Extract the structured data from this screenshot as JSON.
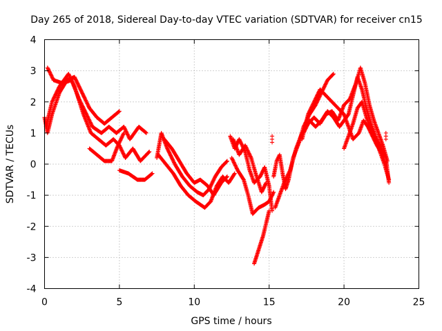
{
  "chart_data": {
    "type": "scatter",
    "title": "Day 265 of 2018, Sidereal Day-to-day VTEC variation (SDTVAR) for receiver cn15",
    "xlabel": "GPS time / hours",
    "ylabel": "SDTVAR / TECUs",
    "xlim": [
      0,
      25
    ],
    "ylim": [
      -4,
      4
    ],
    "xticks": [
      "0",
      "5",
      "10",
      "15",
      "20",
      "25"
    ],
    "yticks": [
      "-4",
      "-3",
      "-2",
      "-1",
      "0",
      "1",
      "2",
      "3",
      "4"
    ],
    "grid": true,
    "marker": "+",
    "color": "#ff0000",
    "series": [
      {
        "name": "track-1",
        "points": [
          [
            0.0,
            1.5
          ],
          [
            0.2,
            1.0
          ],
          [
            0.5,
            1.6
          ],
          [
            1.0,
            2.3
          ],
          [
            1.5,
            2.7
          ],
          [
            2.0,
            2.8
          ],
          [
            2.5,
            2.3
          ],
          [
            3.0,
            1.8
          ],
          [
            3.5,
            1.5
          ],
          [
            4.0,
            1.3
          ],
          [
            4.5,
            1.5
          ],
          [
            5.0,
            1.7
          ]
        ]
      },
      {
        "name": "track-2",
        "points": [
          [
            0.2,
            3.1
          ],
          [
            0.6,
            2.7
          ],
          [
            1.2,
            2.6
          ],
          [
            1.8,
            2.7
          ],
          [
            2.3,
            2.1
          ],
          [
            2.8,
            1.6
          ],
          [
            3.2,
            1.2
          ],
          [
            3.8,
            1.0
          ],
          [
            4.3,
            1.2
          ],
          [
            4.8,
            1.0
          ],
          [
            5.3,
            1.2
          ],
          [
            5.7,
            0.8
          ],
          [
            6.3,
            1.2
          ],
          [
            6.8,
            1.0
          ]
        ]
      },
      {
        "name": "track-3",
        "points": [
          [
            0.1,
            1.2
          ],
          [
            0.5,
            2.0
          ],
          [
            1.0,
            2.5
          ],
          [
            1.6,
            2.9
          ],
          [
            2.0,
            2.5
          ],
          [
            2.6,
            1.6
          ],
          [
            3.1,
            1.0
          ],
          [
            3.6,
            0.8
          ],
          [
            4.1,
            0.6
          ],
          [
            4.6,
            0.8
          ],
          [
            5.0,
            0.6
          ],
          [
            5.4,
            0.2
          ],
          [
            5.9,
            0.5
          ],
          [
            6.4,
            0.1
          ],
          [
            7.0,
            0.4
          ]
        ]
      },
      {
        "name": "track-4",
        "points": [
          [
            3.0,
            0.5
          ],
          [
            3.5,
            0.3
          ],
          [
            4.0,
            0.1
          ],
          [
            4.5,
            0.1
          ],
          [
            4.9,
            0.6
          ],
          [
            5.3,
            1.0
          ]
        ]
      },
      {
        "name": "track-5",
        "points": [
          [
            5.0,
            -0.2
          ],
          [
            5.6,
            -0.3
          ],
          [
            6.2,
            -0.5
          ],
          [
            6.7,
            -0.5
          ],
          [
            7.2,
            -0.3
          ]
        ]
      },
      {
        "name": "track-6",
        "points": [
          [
            7.5,
            0.2
          ],
          [
            7.8,
            1.0
          ],
          [
            8.2,
            0.5
          ],
          [
            8.7,
            0.0
          ],
          [
            9.2,
            -0.4
          ],
          [
            9.7,
            -0.7
          ],
          [
            10.2,
            -0.9
          ],
          [
            10.6,
            -1.0
          ],
          [
            11.0,
            -0.8
          ],
          [
            11.4,
            -0.4
          ],
          [
            11.8,
            -0.1
          ],
          [
            12.2,
            0.1
          ]
        ]
      },
      {
        "name": "track-7",
        "points": [
          [
            7.6,
            0.3
          ],
          [
            8.1,
            0.0
          ],
          [
            8.6,
            -0.3
          ],
          [
            9.1,
            -0.7
          ],
          [
            9.6,
            -1.0
          ],
          [
            10.1,
            -1.2
          ],
          [
            10.7,
            -1.4
          ],
          [
            11.1,
            -1.2
          ],
          [
            11.5,
            -0.7
          ],
          [
            11.9,
            -0.4
          ],
          [
            12.3,
            -0.6
          ],
          [
            12.7,
            -0.3
          ]
        ]
      },
      {
        "name": "track-8",
        "points": [
          [
            8.0,
            0.8
          ],
          [
            8.5,
            0.5
          ],
          [
            9.0,
            0.1
          ],
          [
            9.5,
            -0.3
          ],
          [
            10.0,
            -0.6
          ],
          [
            10.4,
            -0.5
          ],
          [
            10.9,
            -0.7
          ],
          [
            11.3,
            -1.0
          ],
          [
            11.8,
            -0.6
          ],
          [
            12.2,
            -0.4
          ]
        ]
      },
      {
        "name": "track-9",
        "points": [
          [
            12.4,
            0.9
          ],
          [
            12.7,
            0.5
          ],
          [
            13.0,
            0.8
          ],
          [
            13.4,
            0.4
          ],
          [
            13.7,
            -0.2
          ],
          [
            14.0,
            -0.6
          ],
          [
            14.4,
            -0.4
          ],
          [
            14.7,
            -0.1
          ],
          [
            15.0,
            -0.7
          ],
          [
            15.2,
            -1.5
          ]
        ]
      },
      {
        "name": "track-10",
        "points": [
          [
            12.5,
            0.2
          ],
          [
            12.9,
            -0.2
          ],
          [
            13.3,
            -0.5
          ],
          [
            13.6,
            -1.0
          ],
          [
            13.9,
            -1.6
          ],
          [
            14.3,
            -1.4
          ],
          [
            14.7,
            -1.3
          ],
          [
            15.0,
            -1.2
          ],
          [
            15.3,
            -0.9
          ]
        ]
      },
      {
        "name": "track-11",
        "points": [
          [
            12.6,
            0.8
          ],
          [
            13.0,
            0.3
          ],
          [
            13.4,
            0.6
          ],
          [
            13.8,
            0.2
          ],
          [
            14.1,
            -0.3
          ],
          [
            14.5,
            -0.9
          ],
          [
            14.8,
            -0.6
          ]
        ]
      },
      {
        "name": "track-12",
        "points": [
          [
            14.0,
            -3.2
          ],
          [
            14.2,
            -2.9
          ],
          [
            14.4,
            -2.6
          ],
          [
            14.6,
            -2.3
          ],
          [
            14.8,
            -1.9
          ],
          [
            15.0,
            -1.5
          ]
        ]
      },
      {
        "name": "track-13",
        "points": [
          [
            15.3,
            -0.4
          ],
          [
            15.5,
            0.1
          ],
          [
            15.7,
            0.3
          ],
          [
            15.9,
            -0.3
          ],
          [
            16.1,
            -0.8
          ],
          [
            16.3,
            -0.5
          ],
          [
            16.6,
            0.2
          ],
          [
            17.0,
            0.7
          ],
          [
            17.3,
            1.2
          ],
          [
            17.7,
            1.6
          ],
          [
            18.1,
            1.9
          ],
          [
            18.5,
            2.3
          ],
          [
            18.9,
            2.7
          ],
          [
            19.3,
            2.9
          ]
        ]
      },
      {
        "name": "track-14",
        "points": [
          [
            15.4,
            -1.4
          ],
          [
            15.7,
            -1.0
          ],
          [
            16.0,
            -0.6
          ],
          [
            16.4,
            -0.2
          ],
          [
            16.8,
            0.5
          ],
          [
            17.2,
            1.0
          ],
          [
            17.6,
            1.3
          ],
          [
            18.0,
            1.5
          ],
          [
            18.4,
            1.3
          ],
          [
            18.8,
            1.6
          ],
          [
            19.2,
            1.7
          ],
          [
            19.6,
            1.4
          ],
          [
            20.0,
            1.9
          ],
          [
            20.4,
            2.1
          ],
          [
            20.8,
            2.6
          ],
          [
            21.1,
            3.1
          ],
          [
            21.4,
            2.6
          ],
          [
            21.7,
            1.9
          ],
          [
            22.0,
            1.4
          ],
          [
            22.3,
            1.0
          ],
          [
            22.6,
            0.6
          ],
          [
            22.9,
            0.1
          ]
        ]
      },
      {
        "name": "track-15",
        "points": [
          [
            17.3,
            1.0
          ],
          [
            17.7,
            1.4
          ],
          [
            18.1,
            1.2
          ],
          [
            18.5,
            1.4
          ],
          [
            18.9,
            1.7
          ],
          [
            19.3,
            1.5
          ],
          [
            19.7,
            1.2
          ],
          [
            20.0,
            1.4
          ],
          [
            20.3,
            1.6
          ],
          [
            20.6,
            2.2
          ],
          [
            20.9,
            2.8
          ],
          [
            21.2,
            2.4
          ],
          [
            21.5,
            1.8
          ],
          [
            21.8,
            1.3
          ],
          [
            22.1,
            0.9
          ],
          [
            22.5,
            0.5
          ],
          [
            22.8,
            0.2
          ],
          [
            23.0,
            -0.6
          ]
        ]
      },
      {
        "name": "track-16",
        "points": [
          [
            17.2,
            0.8
          ],
          [
            17.6,
            1.6
          ],
          [
            18.0,
            2.0
          ],
          [
            18.4,
            2.4
          ],
          [
            18.8,
            2.2
          ],
          [
            19.2,
            2.0
          ],
          [
            19.6,
            1.8
          ],
          [
            20.0,
            1.6
          ],
          [
            20.3,
            1.2
          ],
          [
            20.6,
            0.8
          ],
          [
            21.0,
            1.0
          ],
          [
            21.3,
            1.4
          ],
          [
            21.6,
            1.2
          ],
          [
            21.9,
            0.9
          ],
          [
            22.2,
            0.6
          ],
          [
            22.6,
            0.3
          ],
          [
            22.9,
            -0.3
          ]
        ]
      },
      {
        "name": "track-17",
        "points": [
          [
            20.0,
            0.5
          ],
          [
            20.3,
            0.9
          ],
          [
            20.6,
            1.3
          ],
          [
            20.9,
            1.8
          ],
          [
            21.2,
            2.0
          ],
          [
            21.5,
            1.5
          ],
          [
            21.8,
            1.1
          ],
          [
            22.1,
            0.8
          ],
          [
            22.4,
            0.4
          ],
          [
            22.7,
            0.0
          ],
          [
            23.0,
            -0.5
          ]
        ]
      },
      {
        "name": "isolated",
        "points": [
          [
            15.2,
            0.8
          ],
          [
            22.8,
            0.9
          ]
        ]
      }
    ]
  }
}
